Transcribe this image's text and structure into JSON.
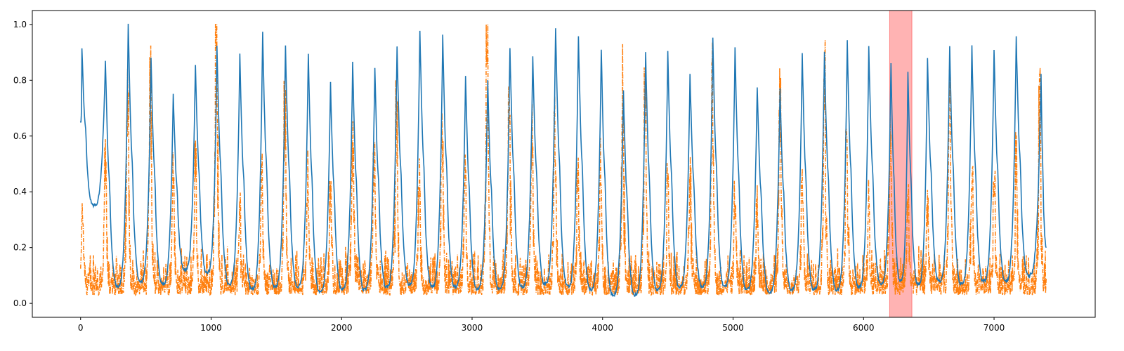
{
  "chart_data": {
    "type": "line",
    "title": "",
    "xlabel": "",
    "ylabel": "",
    "xlim": [
      -370,
      7775
    ],
    "ylim": [
      -0.05,
      1.05
    ],
    "grid": false,
    "x_ticks": [
      0,
      1000,
      2000,
      3000,
      4000,
      5000,
      6000,
      7000
    ],
    "x_tick_labels": [
      "0",
      "1000",
      "2000",
      "3000",
      "4000",
      "5000",
      "6000",
      "7000"
    ],
    "y_ticks": [
      0.0,
      0.2,
      0.4,
      0.6,
      0.8,
      1.0
    ],
    "y_tick_labels": [
      "0.0",
      "0.2",
      "0.4",
      "0.6",
      "0.8",
      "1.0"
    ],
    "highlight_span": {
      "x_start": 6200,
      "x_end": 6370,
      "color": "#ff9a9a"
    },
    "series": [
      {
        "style": "solid",
        "color": "#1f77b4",
        "start": {
          "x": 0,
          "y": 0.65
        },
        "end": {
          "x": 7400,
          "y": 0.2
        },
        "peaks": [
          {
            "x": 10,
            "y": 0.92
          },
          {
            "x": 190,
            "y": 0.87
          },
          {
            "x": 365,
            "y": 1.0
          },
          {
            "x": 540,
            "y": 0.88
          },
          {
            "x": 710,
            "y": 0.75
          },
          {
            "x": 880,
            "y": 0.86
          },
          {
            "x": 1045,
            "y": 0.92
          },
          {
            "x": 1220,
            "y": 0.89
          },
          {
            "x": 1395,
            "y": 0.97
          },
          {
            "x": 1570,
            "y": 0.92
          },
          {
            "x": 1745,
            "y": 0.9
          },
          {
            "x": 1915,
            "y": 0.79
          },
          {
            "x": 2085,
            "y": 0.87
          },
          {
            "x": 2255,
            "y": 0.85
          },
          {
            "x": 2425,
            "y": 0.92
          },
          {
            "x": 2600,
            "y": 0.98
          },
          {
            "x": 2775,
            "y": 0.96
          },
          {
            "x": 2950,
            "y": 0.81
          },
          {
            "x": 3120,
            "y": 0.8
          },
          {
            "x": 3290,
            "y": 0.92
          },
          {
            "x": 3465,
            "y": 0.89
          },
          {
            "x": 3640,
            "y": 0.99
          },
          {
            "x": 3815,
            "y": 0.96
          },
          {
            "x": 3990,
            "y": 0.91
          },
          {
            "x": 4160,
            "y": 0.76
          },
          {
            "x": 4330,
            "y": 0.9
          },
          {
            "x": 4500,
            "y": 0.9
          },
          {
            "x": 4670,
            "y": 0.82
          },
          {
            "x": 4845,
            "y": 0.95
          },
          {
            "x": 5015,
            "y": 0.92
          },
          {
            "x": 5185,
            "y": 0.78
          },
          {
            "x": 5360,
            "y": 0.77
          },
          {
            "x": 5530,
            "y": 0.9
          },
          {
            "x": 5700,
            "y": 0.9
          },
          {
            "x": 5875,
            "y": 0.94
          },
          {
            "x": 6040,
            "y": 0.92
          },
          {
            "x": 6210,
            "y": 0.86
          },
          {
            "x": 6340,
            "y": 0.83
          },
          {
            "x": 6490,
            "y": 0.88
          },
          {
            "x": 6660,
            "y": 0.92
          },
          {
            "x": 6830,
            "y": 0.92
          },
          {
            "x": 7000,
            "y": 0.91
          },
          {
            "x": 7170,
            "y": 0.96
          },
          {
            "x": 7360,
            "y": 0.82
          }
        ],
        "troughs": [
          {
            "x": 95,
            "y": 0.35
          },
          {
            "x": 280,
            "y": 0.06
          },
          {
            "x": 455,
            "y": 0.08
          },
          {
            "x": 625,
            "y": 0.07
          },
          {
            "x": 795,
            "y": 0.12
          },
          {
            "x": 965,
            "y": 0.11
          },
          {
            "x": 1135,
            "y": 0.07
          },
          {
            "x": 1310,
            "y": 0.05
          },
          {
            "x": 1485,
            "y": 0.06
          },
          {
            "x": 1660,
            "y": 0.06
          },
          {
            "x": 1830,
            "y": 0.04
          },
          {
            "x": 2000,
            "y": 0.05
          },
          {
            "x": 2170,
            "y": 0.05
          },
          {
            "x": 2340,
            "y": 0.06
          },
          {
            "x": 2515,
            "y": 0.07
          },
          {
            "x": 2690,
            "y": 0.06
          },
          {
            "x": 2865,
            "y": 0.06
          },
          {
            "x": 3035,
            "y": 0.05
          },
          {
            "x": 3205,
            "y": 0.05
          },
          {
            "x": 3380,
            "y": 0.06
          },
          {
            "x": 3555,
            "y": 0.07
          },
          {
            "x": 3730,
            "y": 0.06
          },
          {
            "x": 3905,
            "y": 0.05
          },
          {
            "x": 4075,
            "y": 0.03
          },
          {
            "x": 4245,
            "y": 0.03
          },
          {
            "x": 4415,
            "y": 0.05
          },
          {
            "x": 4585,
            "y": 0.06
          },
          {
            "x": 4760,
            "y": 0.06
          },
          {
            "x": 4930,
            "y": 0.06
          },
          {
            "x": 5100,
            "y": 0.05
          },
          {
            "x": 5275,
            "y": 0.04
          },
          {
            "x": 5445,
            "y": 0.05
          },
          {
            "x": 5615,
            "y": 0.05
          },
          {
            "x": 5790,
            "y": 0.05
          },
          {
            "x": 5960,
            "y": 0.06
          },
          {
            "x": 6130,
            "y": 0.07
          },
          {
            "x": 6280,
            "y": 0.08
          },
          {
            "x": 6415,
            "y": 0.07
          },
          {
            "x": 6575,
            "y": 0.08
          },
          {
            "x": 6745,
            "y": 0.07
          },
          {
            "x": 6915,
            "y": 0.08
          },
          {
            "x": 7085,
            "y": 0.08
          },
          {
            "x": 7260,
            "y": 0.1
          }
        ]
      },
      {
        "style": "dash-dot",
        "color": "#ff7f0e",
        "baseline": 0.03,
        "noise_max": 0.18,
        "spikes": [
          {
            "x": 15,
            "y": 0.29
          },
          {
            "x": 190,
            "y": 0.43
          },
          {
            "x": 360,
            "y": 0.64
          },
          {
            "x": 535,
            "y": 0.7
          },
          {
            "x": 710,
            "y": 0.41
          },
          {
            "x": 880,
            "y": 0.45
          },
          {
            "x": 1040,
            "y": 1.0
          },
          {
            "x": 1220,
            "y": 0.3
          },
          {
            "x": 1390,
            "y": 0.42
          },
          {
            "x": 1565,
            "y": 0.65
          },
          {
            "x": 1740,
            "y": 0.43
          },
          {
            "x": 1915,
            "y": 0.39
          },
          {
            "x": 2085,
            "y": 0.49
          },
          {
            "x": 2250,
            "y": 0.46
          },
          {
            "x": 2420,
            "y": 0.62
          },
          {
            "x": 2595,
            "y": 0.39
          },
          {
            "x": 2770,
            "y": 0.57
          },
          {
            "x": 2945,
            "y": 0.4
          },
          {
            "x": 3115,
            "y": 0.83
          },
          {
            "x": 3285,
            "y": 0.74
          },
          {
            "x": 3460,
            "y": 0.53
          },
          {
            "x": 3635,
            "y": 0.58
          },
          {
            "x": 3810,
            "y": 0.42
          },
          {
            "x": 3985,
            "y": 0.44
          },
          {
            "x": 4155,
            "y": 0.68
          },
          {
            "x": 4325,
            "y": 0.66
          },
          {
            "x": 4500,
            "y": 0.41
          },
          {
            "x": 4670,
            "y": 0.42
          },
          {
            "x": 4840,
            "y": 0.7
          },
          {
            "x": 5015,
            "y": 0.34
          },
          {
            "x": 5185,
            "y": 0.31
          },
          {
            "x": 5360,
            "y": 0.62
          },
          {
            "x": 5530,
            "y": 0.39
          },
          {
            "x": 5700,
            "y": 0.73
          },
          {
            "x": 5870,
            "y": 0.63
          },
          {
            "x": 6040,
            "y": 0.36
          },
          {
            "x": 6205,
            "y": 0.59
          },
          {
            "x": 6340,
            "y": 0.38
          },
          {
            "x": 6490,
            "y": 0.3
          },
          {
            "x": 6660,
            "y": 0.63
          },
          {
            "x": 6830,
            "y": 0.42
          },
          {
            "x": 7000,
            "y": 0.4
          },
          {
            "x": 7170,
            "y": 0.47
          },
          {
            "x": 7350,
            "y": 0.71
          }
        ]
      }
    ]
  }
}
